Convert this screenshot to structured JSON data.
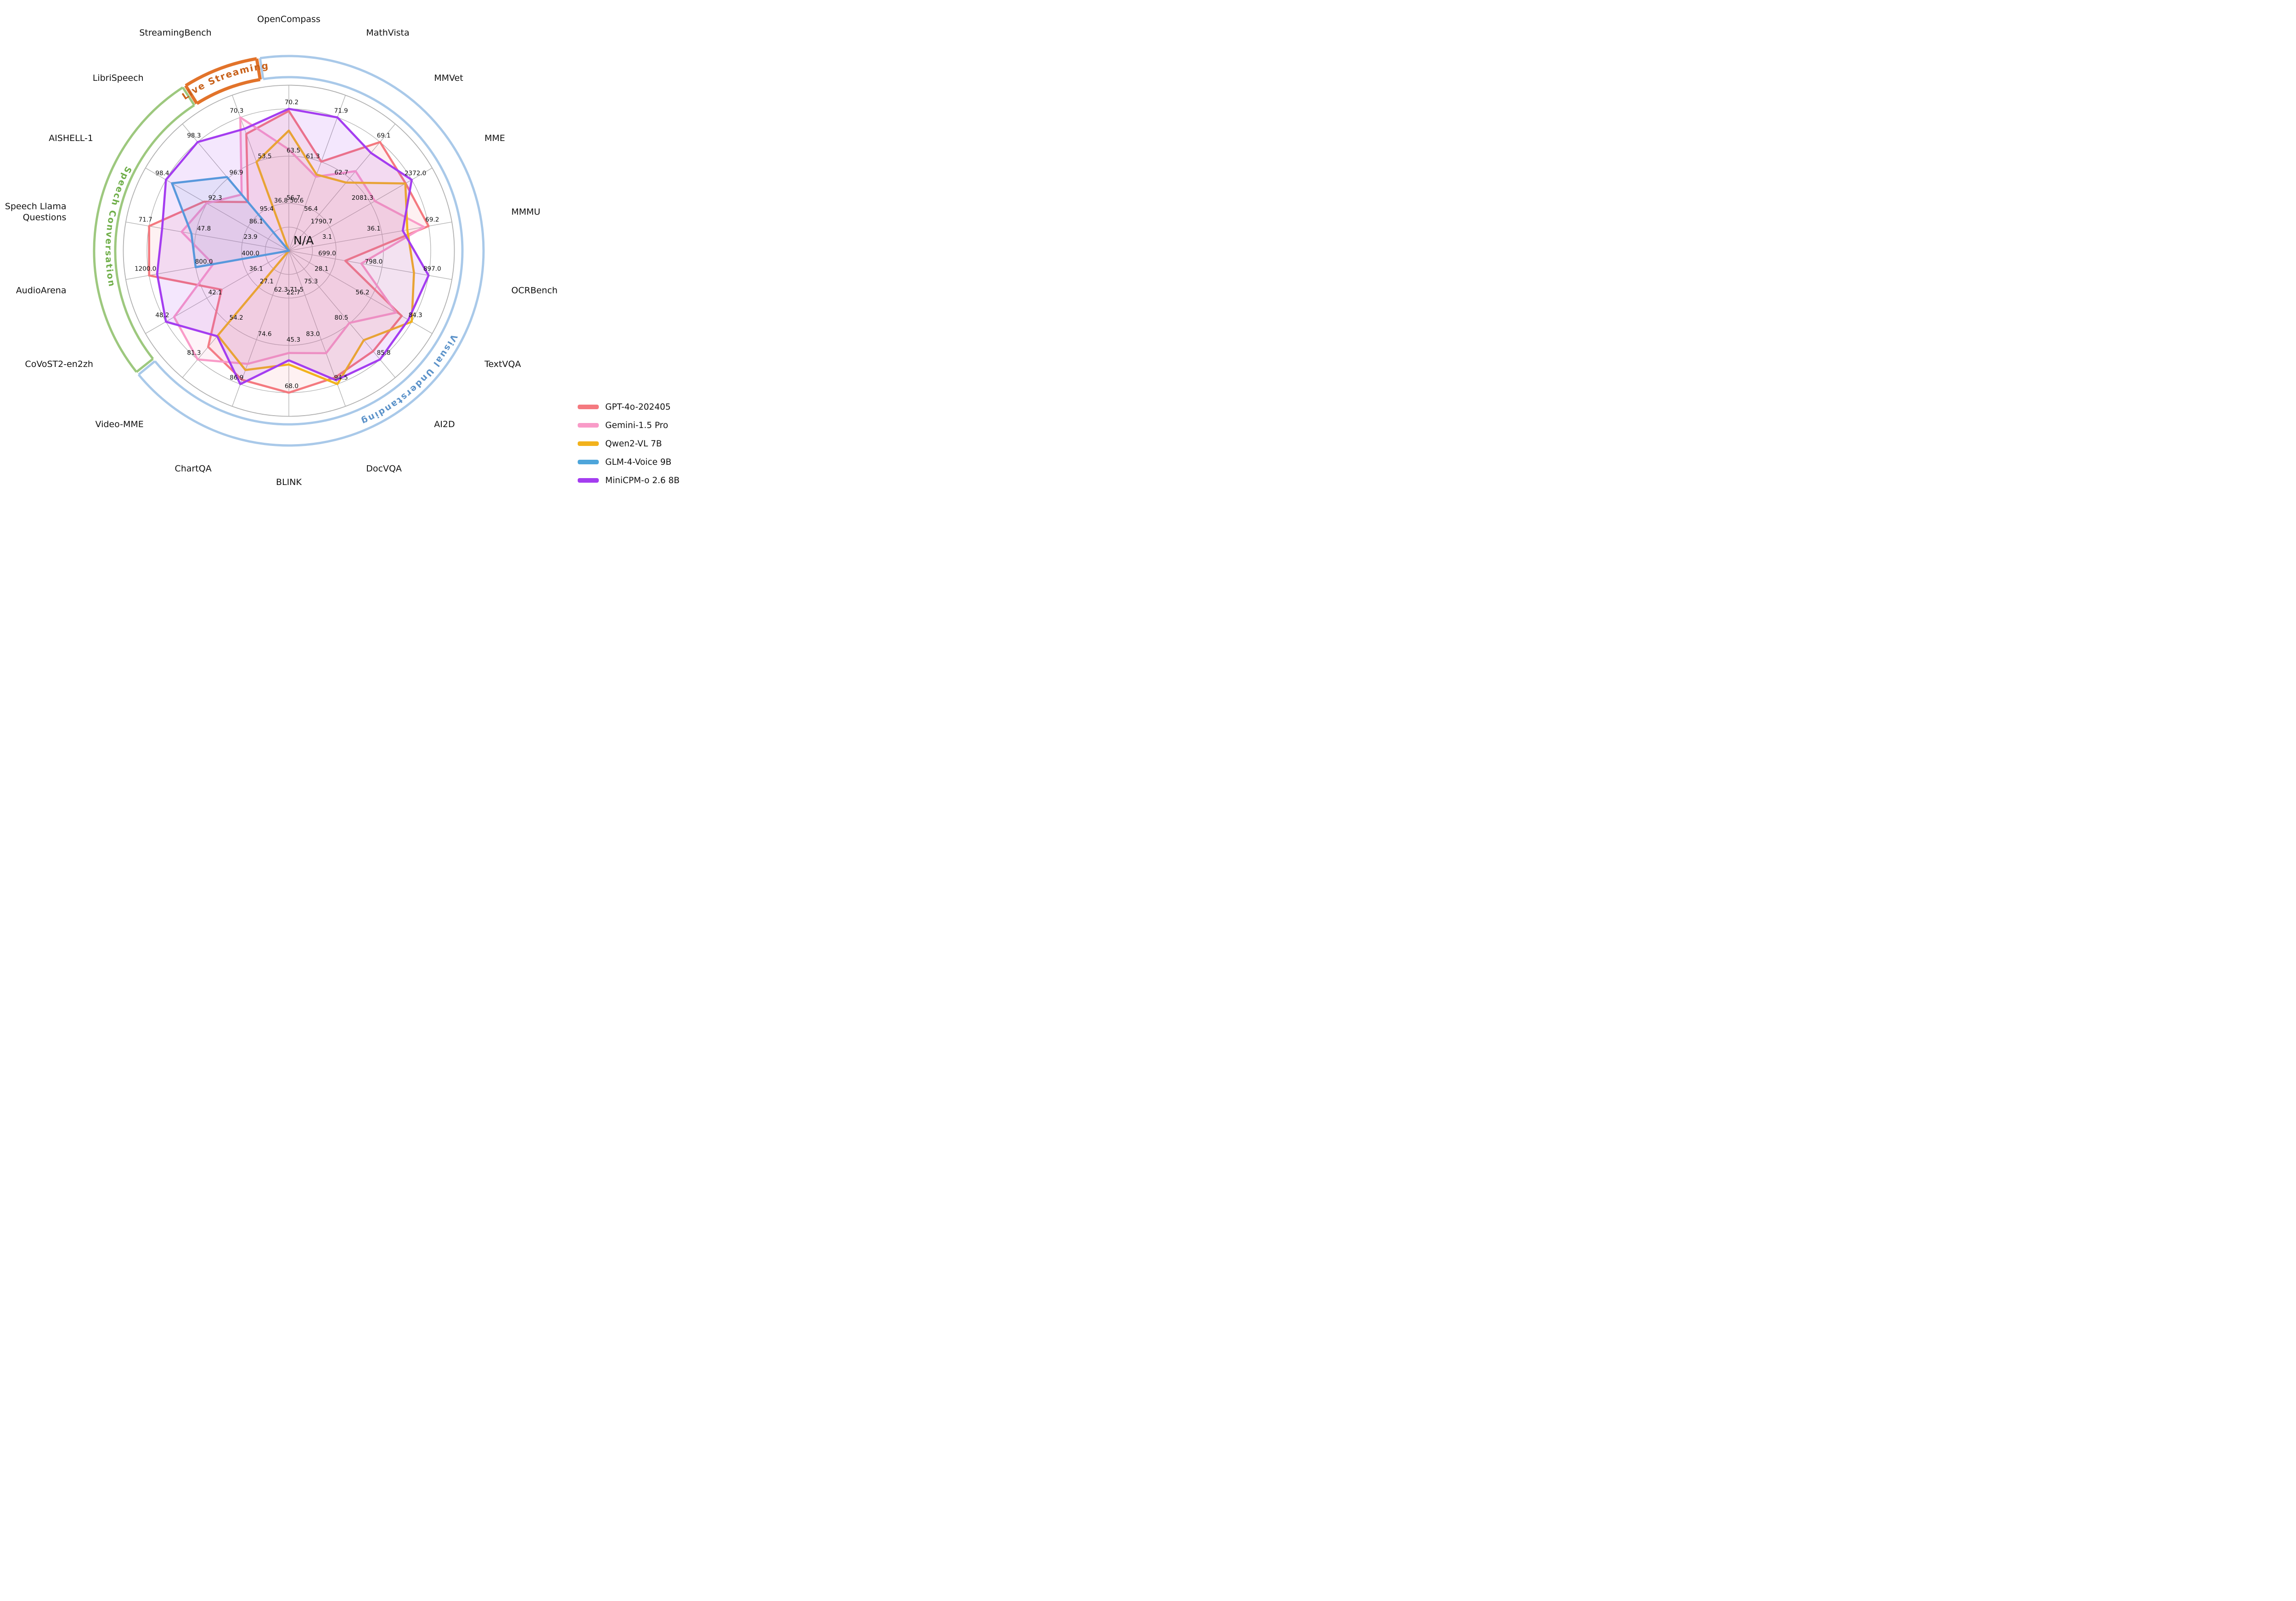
{
  "chart_data": {
    "type": "radar",
    "center_label": "N/A",
    "rings_per_axis": 3,
    "grid": "on",
    "axes": [
      {
        "name": "OpenCompass",
        "angle_deg": 0,
        "ticks": [
          "56.7",
          "63.5",
          "70.2"
        ]
      },
      {
        "name": "MathVista",
        "angle_deg": 20,
        "ticks": [
          "50.6",
          "61.3",
          "71.9"
        ]
      },
      {
        "name": "MMVet",
        "angle_deg": 40,
        "ticks": [
          "56.4",
          "62.7",
          "69.1"
        ]
      },
      {
        "name": "MME",
        "angle_deg": 60,
        "ticks": [
          "1790.7",
          "2081.3",
          "2372.0"
        ]
      },
      {
        "name": "MMMU",
        "angle_deg": 80,
        "ticks": [
          "3.1",
          "36.1",
          "69.2"
        ]
      },
      {
        "name": "OCRBench",
        "angle_deg": 100,
        "ticks": [
          "699.0",
          "798.0",
          "897.0"
        ]
      },
      {
        "name": "TextVQA",
        "angle_deg": 120,
        "ticks": [
          "28.1",
          "56.2",
          "84.3"
        ]
      },
      {
        "name": "AI2D",
        "angle_deg": 140,
        "ticks": [
          "75.3",
          "80.5",
          "85.8"
        ]
      },
      {
        "name": "DocVQA",
        "angle_deg": 160,
        "ticks": [
          "71.5",
          "83.0",
          "94.5"
        ]
      },
      {
        "name": "BLINK",
        "angle_deg": 180,
        "ticks": [
          "22.7",
          "45.3",
          "68.0"
        ]
      },
      {
        "name": "ChartQA",
        "angle_deg": 200,
        "ticks": [
          "62.3",
          "74.6",
          "86.9"
        ]
      },
      {
        "name": "Video-MME",
        "angle_deg": 220,
        "ticks": [
          "27.1",
          "54.2",
          "81.3"
        ]
      },
      {
        "name": "CoVoST2-en2zh",
        "angle_deg": 240,
        "ticks": [
          "36.1",
          "42.1",
          "48.2"
        ]
      },
      {
        "name": "AudioArena",
        "angle_deg": 260,
        "ticks": [
          "400.0",
          "800.0",
          "1200.0"
        ]
      },
      {
        "name": "Speech Llama Questions",
        "angle_deg": 280,
        "ticks": [
          "23.9",
          "47.8",
          "71.7"
        ],
        "label_lines": [
          "Speech Llama",
          "Questions"
        ]
      },
      {
        "name": "AISHELL-1",
        "angle_deg": 300,
        "ticks": [
          "86.1",
          "92.3",
          "98.4"
        ]
      },
      {
        "name": "LibriSpeech",
        "angle_deg": 320,
        "ticks": [
          "95.4",
          "96.9",
          "98.3"
        ]
      },
      {
        "name": "StreamingBench",
        "angle_deg": 340,
        "ticks": [
          "36.8",
          "53.5",
          "70.3"
        ]
      }
    ],
    "series": [
      {
        "name": "GPT-4o-202405",
        "color": "#f4797f",
        "values": [
          69.9,
          61.3,
          69.1,
          2328.7,
          69.2,
          720,
          77.4,
          84.6,
          92.8,
          68.0,
          85.7,
          71.9,
          40.0,
          1200.0,
          71.7,
          92.7,
          95.9,
          64.1
        ]
      },
      {
        "name": "Gemini-1.5 Pro",
        "color": "#f99bc8",
        "values": [
          64.4,
          57.7,
          64.0,
          2110.6,
          65.9,
          754,
          73.5,
          80.5,
          86.5,
          49.0,
          81.3,
          81.3,
          47.0,
          650,
          55.0,
          92.3,
          96.2,
          70.3
        ]
      },
      {
        "name": "Qwen2-VL 7B",
        "color": "#f2b21c",
        "values": [
          67.1,
          58.2,
          62.0,
          2326.8,
          54.1,
          866,
          84.3,
          83.0,
          94.5,
          54.5,
          83.0,
          63.3,
          null,
          null,
          null,
          null,
          null,
          53.5
        ]
      },
      {
        "name": "GLM-4-Voice 9B",
        "color": "#4ea5da",
        "values": [
          null,
          null,
          null,
          null,
          null,
          null,
          null,
          null,
          null,
          null,
          null,
          null,
          null,
          800.0,
          50.0,
          97.5,
          96.9,
          null
        ]
      },
      {
        "name": "MiniCPM-o 2.6 8B",
        "color": "#a43df0",
        "values": [
          70.2,
          71.9,
          67.2,
          2372.0,
          50.9,
          897.0,
          82.0,
          85.8,
          93.5,
          52.5,
          86.9,
          63.9,
          48.2,
          1131,
          65.0,
          98.4,
          98.3,
          66.0
        ]
      }
    ],
    "category_arcs": [
      {
        "label": "Visual Understanding",
        "band_color": "#a9c9e9",
        "text_color": "#5b92c9",
        "start_deg": 351.5,
        "end_deg": 230.5,
        "text_deg": 137,
        "text_dir": "cw"
      },
      {
        "label": "Speech Conversation",
        "band_color": "#9dc87e",
        "text_color": "#6fae49",
        "start_deg": 231.5,
        "end_deg": 327.0,
        "text_deg": 278,
        "text_dir": "ccw"
      },
      {
        "label": "Live Streaming",
        "band_color": "#e2732a",
        "text_color": "#c8611a",
        "start_deg": 328.0,
        "end_deg": 350.5,
        "text_deg": 339.5,
        "text_dir": "cw"
      }
    ],
    "legend": {
      "entries": [
        "GPT-4o-202405",
        "Gemini-1.5 Pro",
        "Qwen2-VL 7B",
        "GLM-4-Voice 9B",
        "MiniCPM-o 2.6 8B"
      ]
    },
    "style": {
      "grid_color": "#b0b0b0",
      "text_color": "#111111",
      "background": "#ffffff"
    }
  }
}
